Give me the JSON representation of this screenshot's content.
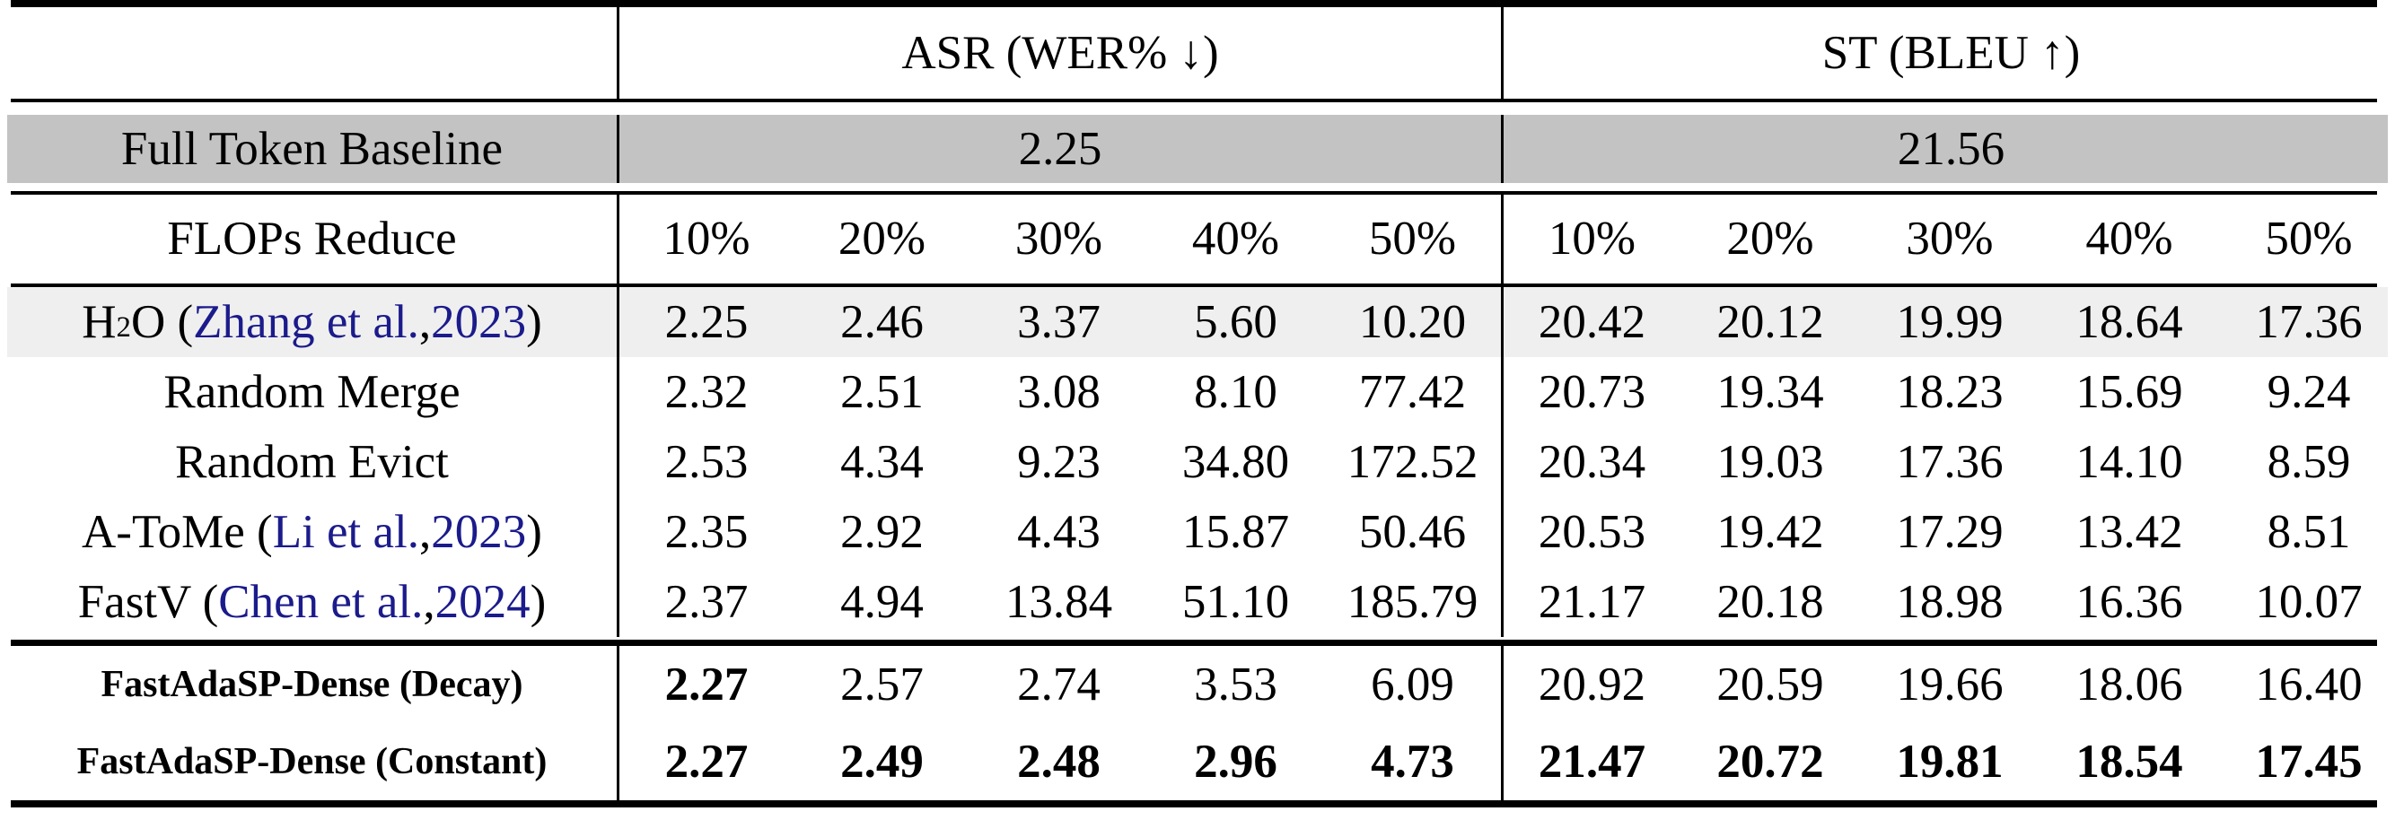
{
  "colors": {
    "baseline_row_bg": "#c3c3c3",
    "highlight_row_bg": "#efefef",
    "link": "#1b1b8c",
    "rule": "#000000"
  },
  "header": {
    "asr": "ASR (WER% ↓)",
    "st": "ST (BLEU ↑)"
  },
  "baseline": {
    "label": "Full Token Baseline",
    "asr_value": "2.25",
    "st_value": "21.56"
  },
  "flops": {
    "label": "FLOPs Reduce",
    "percentages": [
      "10%",
      "20%",
      "30%",
      "40%",
      "50%",
      "10%",
      "20%",
      "30%",
      "40%",
      "50%"
    ]
  },
  "methods": [
    {
      "name": "h2o",
      "highlight": true,
      "label_parts": [
        {
          "t": "H"
        },
        {
          "t": "2",
          "sub": true
        },
        {
          "t": "O ("
        },
        {
          "t": "Zhang et al.",
          "link": true
        },
        {
          "t": ", "
        },
        {
          "t": "2023",
          "link": true
        },
        {
          "t": ")"
        }
      ],
      "values": [
        "2.25",
        "2.46",
        "3.37",
        "5.60",
        "10.20",
        "20.42",
        "20.12",
        "19.99",
        "18.64",
        "17.36"
      ],
      "bold": []
    },
    {
      "name": "random-merge",
      "highlight": false,
      "label_parts": [
        {
          "t": "Random Merge"
        }
      ],
      "values": [
        "2.32",
        "2.51",
        "3.08",
        "8.10",
        "77.42",
        "20.73",
        "19.34",
        "18.23",
        "15.69",
        "9.24"
      ],
      "bold": []
    },
    {
      "name": "random-evict",
      "highlight": false,
      "label_parts": [
        {
          "t": "Random Evict"
        }
      ],
      "values": [
        "2.53",
        "4.34",
        "9.23",
        "34.80",
        "172.52",
        "20.34",
        "19.03",
        "17.36",
        "14.10",
        "8.59"
      ],
      "bold": []
    },
    {
      "name": "a-tome",
      "highlight": false,
      "label_parts": [
        {
          "t": "A-ToMe ("
        },
        {
          "t": "Li et al.",
          "link": true
        },
        {
          "t": ", "
        },
        {
          "t": "2023",
          "link": true
        },
        {
          "t": ")"
        }
      ],
      "values": [
        "2.35",
        "2.92",
        "4.43",
        "15.87",
        "50.46",
        "20.53",
        "19.42",
        "17.29",
        "13.42",
        "8.51"
      ],
      "bold": []
    },
    {
      "name": "fastv",
      "highlight": false,
      "label_parts": [
        {
          "t": "FastV ("
        },
        {
          "t": "Chen et al.",
          "link": true
        },
        {
          "t": ", "
        },
        {
          "t": "2024",
          "link": true
        },
        {
          "t": ")"
        }
      ],
      "values": [
        "2.37",
        "4.94",
        "13.84",
        "51.10",
        "185.79",
        "21.17",
        "20.18",
        "18.98",
        "16.36",
        "10.07"
      ],
      "bold": []
    }
  ],
  "ours": [
    {
      "name": "fastadasp-dense-decay",
      "label": "FastAdaSP-Dense (Decay)",
      "values": [
        "2.27",
        "2.57",
        "2.74",
        "3.53",
        "6.09",
        "20.92",
        "20.59",
        "19.66",
        "18.06",
        "16.40"
      ],
      "bold": [
        0
      ]
    },
    {
      "name": "fastadasp-dense-constant",
      "label": "FastAdaSP-Dense (Constant)",
      "values": [
        "2.27",
        "2.49",
        "2.48",
        "2.96",
        "4.73",
        "21.47",
        "20.72",
        "19.81",
        "18.54",
        "17.45"
      ],
      "bold": [
        0,
        1,
        2,
        3,
        4,
        5,
        6,
        7,
        8,
        9
      ]
    }
  ]
}
